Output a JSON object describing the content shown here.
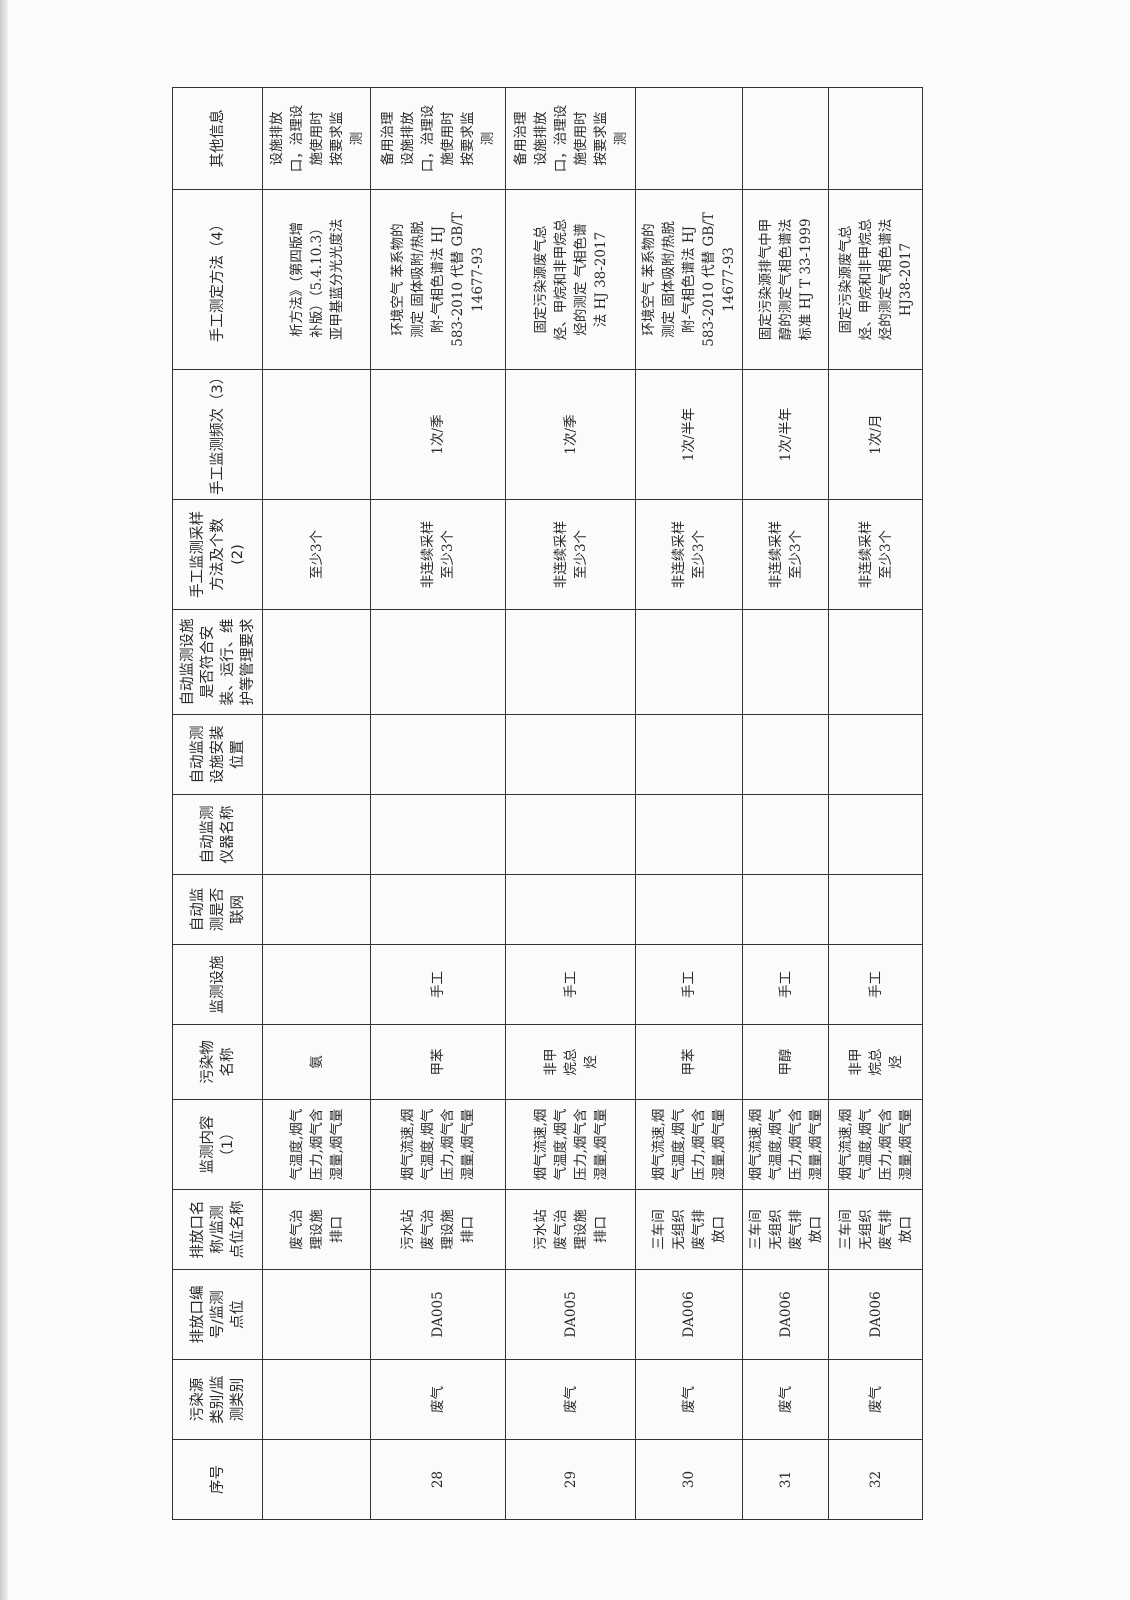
{
  "headers": [
    "序号",
    "污染源\n类别/监\n测类别",
    "排放口编\n号/监测\n点位",
    "排放口名\n称/监测\n点位名称",
    "监测内容（1）",
    "污染物\n名称",
    "监测设施",
    "自动监\n测是否\n联网",
    "自动监测\n仪器名称",
    "自动监测\n设施安装\n位置",
    "自动监测设施\n是否符合安\n装、运行、维\n护等管理要求",
    "手工监测采样\n方法及个数\n(2)",
    "手工监测频次（3）",
    "手工测定方法（4）",
    "其他信息"
  ],
  "rows": [
    [
      "",
      "",
      "",
      "废气治\n理设施\n排口",
      "气温度,烟气\n压力,烟气含\n湿量,烟气量",
      "氨",
      "",
      "",
      "",
      "",
      "",
      "至少3个",
      "",
      "析方法》（第四版增\n补版）（5.4.10.3）\n亚甲基蓝分光光度法",
      "设施排放\n口，治理设\n施使用时\n按要求监\n测"
    ],
    [
      "28",
      "废气",
      "DA005",
      "污水站\n废气治\n理设施\n排口",
      "烟气流速,烟\n气温度,烟气\n压力,烟气含\n湿量,烟气量",
      "甲苯",
      "手工",
      "",
      "",
      "",
      "",
      "非连续采样\n至少3个",
      "1次/季",
      "环境空气 苯系物的\n测定 固体吸附/热脱\n附-气相色谱法 HJ\n583-2010 代替 GB/T\n14677-93",
      "备用治理\n设施排放\n口，治理设\n施使用时\n按要求监\n测"
    ],
    [
      "29",
      "废气",
      "DA005",
      "污水站\n废气治\n理设施\n排口",
      "烟气流速,烟\n气温度,烟气\n压力,烟气含\n湿量,烟气量",
      "非甲\n烷总\n烃",
      "手工",
      "",
      "",
      "",
      "",
      "非连续采样\n至少3个",
      "1次/季",
      "固定污染源废气总\n烃、甲烷和非甲烷总\n烃的测定 气相色谱\n法 HJ 38-2017",
      "备用治理\n设施排放\n口，治理设\n施使用时\n按要求监\n测"
    ],
    [
      "30",
      "废气",
      "DA006",
      "三车间\n无组织\n废气排\n放口",
      "烟气流速,烟\n气温度,烟气\n压力,烟气含\n湿量,烟气量",
      "甲苯",
      "手工",
      "",
      "",
      "",
      "",
      "非连续采样\n至少3个",
      "1次/半年",
      "环境空气 苯系物的\n测定 固体吸附/热脱\n附-气相色谱法 HJ\n583-2010 代替 GB/T\n14677-93",
      ""
    ],
    [
      "31",
      "废气",
      "DA006",
      "三车间\n无组织\n废气排\n放口",
      "烟气流速,烟\n气温度,烟气\n压力,烟气含\n湿量,烟气量",
      "甲醇",
      "手工",
      "",
      "",
      "",
      "",
      "非连续采样\n至少3个",
      "1次/半年",
      "固定污染源排气中甲\n醇的测定气相色谱法\n标准 HJ T 33-1999",
      ""
    ],
    [
      "32",
      "废气",
      "DA006",
      "三车间\n无组织\n废气排\n放口",
      "烟气流速,烟\n气温度,烟气\n压力,烟气含\n湿量,烟气量",
      "非甲\n烷总\n烃",
      "手工",
      "",
      "",
      "",
      "",
      "非连续采样\n至少3个",
      "1次/月",
      "固定污染源废气总\n烃、甲烷和非甲烷总\n烃的测定气相色谱法\nHJ38-2017",
      ""
    ]
  ]
}
